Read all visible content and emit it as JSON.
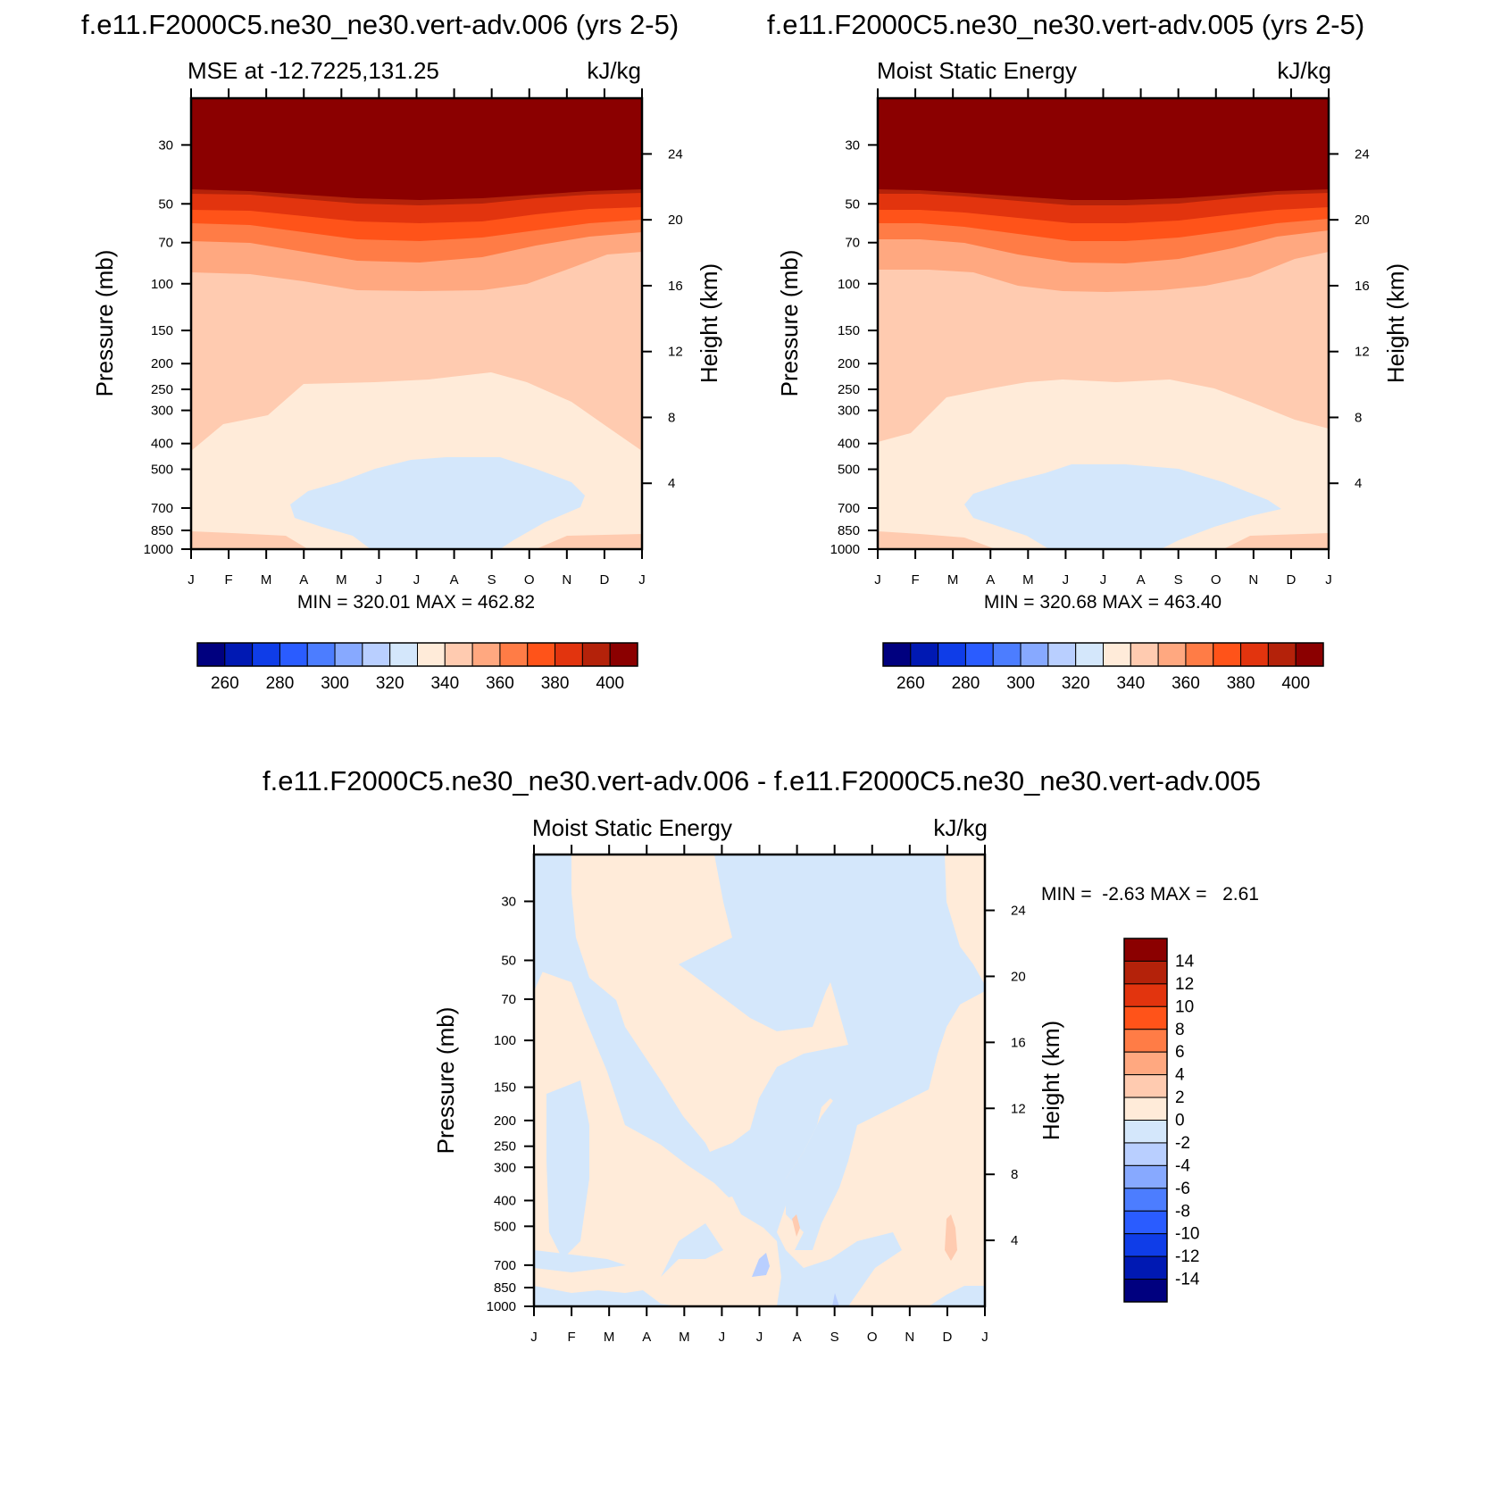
{
  "colors": {
    "mse_palette": [
      "#00007f",
      "#0019b3",
      "#0f3de8",
      "#2a5cff",
      "#4c7dff",
      "#87a9ff",
      "#b9cfff",
      "#d4e7fb",
      "#ffebd9",
      "#ffcbb0",
      "#ffa880",
      "#ff7c46",
      "#ff5319",
      "#e2340e",
      "#b4220a",
      "#8b0000"
    ],
    "diff_palette": [
      "#00007f",
      "#0019b3",
      "#0f3de8",
      "#2a5cff",
      "#4c7dff",
      "#87a9ff",
      "#b9cfff",
      "#d4e7fb",
      "#ffebd9",
      "#ffcbb0",
      "#ffa880",
      "#ff7c46",
      "#ff5319",
      "#e2340e",
      "#b4220a",
      "#8b0000"
    ]
  },
  "top_left": {
    "title": "f.e11.F2000C5.ne30_ne30.vert-adv.006 (yrs 2-5)",
    "left_label": "MSE at -12.7225,131.25",
    "units": "kJ/kg",
    "ylabel": "Pressure (mb)",
    "ylabel_right": "Height (km)",
    "minmax": "MIN = 320.01 MAX = 462.82"
  },
  "top_right": {
    "title": "f.e11.F2000C5.ne30_ne30.vert-adv.005 (yrs 2-5)",
    "left_label": "Moist Static Energy",
    "units": "kJ/kg",
    "ylabel": "Pressure (mb)",
    "ylabel_right": "Height (km)",
    "minmax": "MIN = 320.68 MAX = 463.40"
  },
  "bottom": {
    "title": "f.e11.F2000C5.ne30_ne30.vert-adv.006 - f.e11.F2000C5.ne30_ne30.vert-adv.005",
    "left_label": "Moist Static Energy",
    "units": "kJ/kg",
    "ylabel": "Pressure (mb)",
    "ylabel_right": "Height (km)",
    "minmax": "MIN =  -2.63 MAX =   2.61"
  },
  "chart_data": [
    {
      "type": "heatmap",
      "panel": "top_left",
      "x": [
        "J",
        "F",
        "M",
        "A",
        "M",
        "J",
        "J",
        "A",
        "S",
        "O",
        "N",
        "D",
        "J"
      ],
      "pressure_ticks": [
        30,
        50,
        70,
        100,
        150,
        200,
        250,
        300,
        400,
        500,
        700,
        850,
        1000
      ],
      "height_ticks": [
        4,
        8,
        12,
        16,
        20,
        24
      ],
      "colorbar_levels": [
        250,
        260,
        270,
        280,
        290,
        300,
        310,
        320,
        330,
        340,
        350,
        360,
        370,
        380,
        390,
        400,
        410
      ],
      "colorbar_labels": [
        "260",
        "280",
        "300",
        "320",
        "340",
        "360",
        "380",
        "400"
      ],
      "min": 320.01,
      "max": 462.82
    },
    {
      "type": "heatmap",
      "panel": "top_right",
      "x": [
        "J",
        "F",
        "M",
        "A",
        "M",
        "J",
        "J",
        "A",
        "S",
        "O",
        "N",
        "D",
        "J"
      ],
      "pressure_ticks": [
        30,
        50,
        70,
        100,
        150,
        200,
        250,
        300,
        400,
        500,
        700,
        850,
        1000
      ],
      "height_ticks": [
        4,
        8,
        12,
        16,
        20,
        24
      ],
      "colorbar_levels": [
        250,
        260,
        270,
        280,
        290,
        300,
        310,
        320,
        330,
        340,
        350,
        360,
        370,
        380,
        390,
        400,
        410
      ],
      "colorbar_labels": [
        "260",
        "280",
        "300",
        "320",
        "340",
        "360",
        "380",
        "400"
      ],
      "min": 320.68,
      "max": 463.4
    },
    {
      "type": "heatmap",
      "panel": "bottom",
      "x": [
        "J",
        "F",
        "M",
        "A",
        "M",
        "J",
        "J",
        "A",
        "S",
        "O",
        "N",
        "D",
        "J"
      ],
      "pressure_ticks": [
        30,
        50,
        70,
        100,
        150,
        200,
        250,
        300,
        400,
        500,
        700,
        850,
        1000
      ],
      "height_ticks": [
        4,
        8,
        12,
        16,
        20,
        24
      ],
      "colorbar_labels": [
        "14",
        "12",
        "10",
        "8",
        "6",
        "4",
        "2",
        "0",
        "-2",
        "-4",
        "-6",
        "-8",
        "-10",
        "-12",
        "-14"
      ],
      "min": -2.63,
      "max": 2.61
    }
  ]
}
